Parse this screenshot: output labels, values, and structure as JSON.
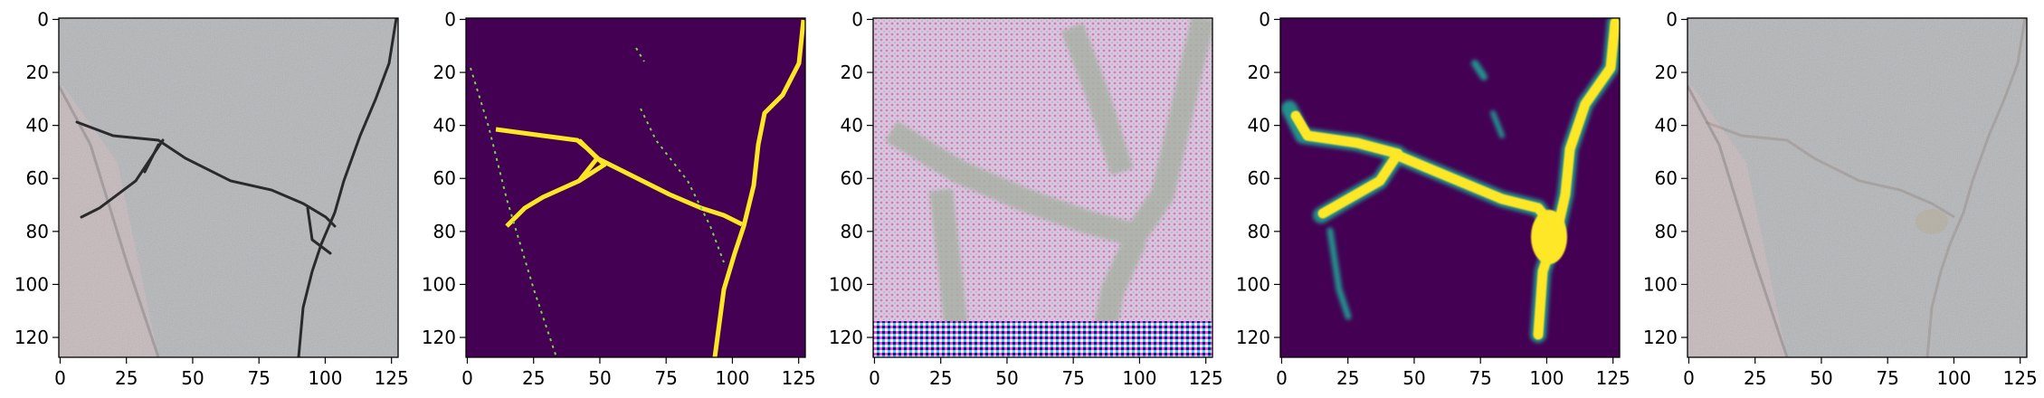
{
  "panels": [
    {
      "id": "panel-1",
      "kind": "photo"
    },
    {
      "id": "panel-2",
      "kind": "mask"
    },
    {
      "id": "panel-3",
      "kind": "pattern"
    },
    {
      "id": "panel-4",
      "kind": "heatmap"
    },
    {
      "id": "panel-5",
      "kind": "photo-faint"
    }
  ],
  "axes": {
    "x_ticks": [
      "0",
      "25",
      "50",
      "75",
      "100",
      "125"
    ],
    "x_tick_values": [
      0,
      25,
      50,
      75,
      100,
      125
    ],
    "y_ticks": [
      "0",
      "20",
      "40",
      "60",
      "80",
      "100",
      "120"
    ],
    "y_tick_values": [
      0,
      20,
      40,
      60,
      80,
      100,
      120
    ],
    "range": [
      0,
      128
    ]
  },
  "colors": {
    "mask_bg": "#440154",
    "mask_fg": "#fde725",
    "mask_edge": "#7ad151",
    "heat_mid": "#21918c"
  }
}
